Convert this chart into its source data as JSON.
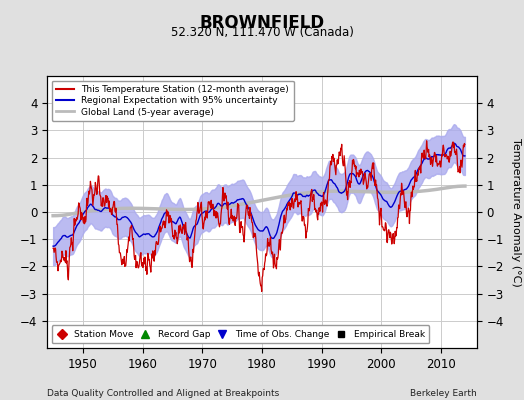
{
  "title": "BROWNFIELD",
  "subtitle": "52.320 N, 111.470 W (Canada)",
  "ylabel": "Temperature Anomaly (°C)",
  "xlabel_left": "Data Quality Controlled and Aligned at Breakpoints",
  "xlabel_right": "Berkeley Earth",
  "ylim": [
    -5,
    5
  ],
  "xlim": [
    1944,
    2016
  ],
  "xticks": [
    1950,
    1960,
    1970,
    1980,
    1990,
    2000,
    2010
  ],
  "yticks": [
    -4,
    -3,
    -2,
    -1,
    0,
    1,
    2,
    3,
    4
  ],
  "bg_color": "#e0e0e0",
  "plot_bg_color": "#ffffff",
  "grid_color": "#cccccc",
  "station_color": "#cc0000",
  "regional_color": "#0000cc",
  "regional_fill_color": "#aaaaee",
  "global_color": "#bbbbbb",
  "empirical_break_x": 1979.6,
  "empirical_break_y": -4.35,
  "legend_items": [
    {
      "label": "This Temperature Station (12-month average)",
      "color": "#cc0000",
      "lw": 1.5
    },
    {
      "label": "Regional Expectation with 95% uncertainty",
      "color": "#0000cc",
      "lw": 1.5
    },
    {
      "label": "Global Land (5-year average)",
      "color": "#bbbbbb",
      "lw": 2.0
    }
  ],
  "marker_legend": [
    {
      "label": "Station Move",
      "marker": "D",
      "color": "#cc0000"
    },
    {
      "label": "Record Gap",
      "marker": "^",
      "color": "#008800"
    },
    {
      "label": "Time of Obs. Change",
      "marker": "v",
      "color": "#0000cc"
    },
    {
      "label": "Empirical Break",
      "marker": "s",
      "color": "#000000"
    }
  ]
}
